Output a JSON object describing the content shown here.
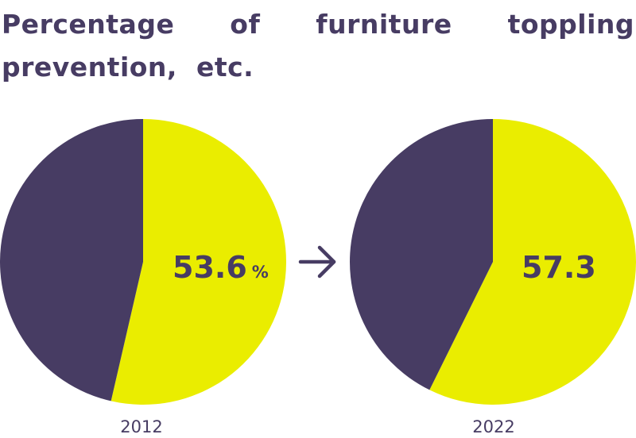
{
  "title": "Percentage of furniture toppling prevention, etc.",
  "arrow_icon": "right-arrow-icon",
  "colors": {
    "primary": "#eaed00",
    "remainder": "#473c63",
    "text": "#473c63"
  },
  "chart_data": [
    {
      "type": "pie",
      "category": "2012",
      "value": 53.6,
      "value_label": "53.6",
      "unit": "%",
      "slices": [
        {
          "label": "",
          "value": 53.6,
          "color": "#eaed00"
        },
        {
          "label": "",
          "value": 46.4,
          "color": "#473c63"
        }
      ]
    },
    {
      "type": "pie",
      "category": "2022",
      "value": 57.3,
      "value_label": "57.3",
      "unit": "",
      "slices": [
        {
          "label": "",
          "value": 57.3,
          "color": "#eaed00"
        },
        {
          "label": "",
          "value": 42.7,
          "color": "#473c63"
        }
      ]
    }
  ]
}
